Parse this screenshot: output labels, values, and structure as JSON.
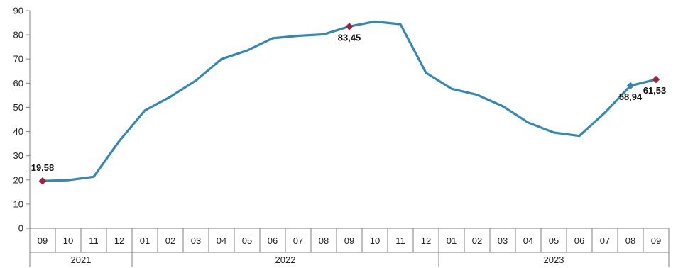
{
  "chart_data": {
    "type": "line",
    "title": "",
    "xlabel": "",
    "ylabel": "",
    "ylim": [
      0,
      90
    ],
    "yticks": [
      0,
      10,
      20,
      30,
      40,
      50,
      60,
      70,
      80,
      90
    ],
    "grid": false,
    "legend": "none",
    "categories": [
      "09",
      "10",
      "11",
      "12",
      "01",
      "02",
      "03",
      "04",
      "05",
      "06",
      "07",
      "08",
      "09",
      "10",
      "11",
      "12",
      "01",
      "02",
      "03",
      "04",
      "05",
      "06",
      "07",
      "08",
      "09"
    ],
    "year_groups": [
      {
        "label": "2021",
        "start": 0,
        "end": 3
      },
      {
        "label": "2022",
        "start": 4,
        "end": 15
      },
      {
        "label": "2023",
        "start": 16,
        "end": 24
      }
    ],
    "series": [
      {
        "values": [
          19.58,
          19.9,
          21.3,
          36.1,
          48.7,
          54.4,
          61.1,
          69.97,
          73.5,
          78.6,
          79.6,
          80.2,
          83.45,
          85.5,
          84.4,
          64.3,
          57.7,
          55.2,
          50.5,
          43.7,
          39.6,
          38.2,
          47.8,
          58.94,
          61.53
        ]
      }
    ],
    "labeled_points": [
      {
        "index": 0,
        "text": "19,58",
        "position": "above"
      },
      {
        "index": 12,
        "text": "83,45",
        "position": "below"
      },
      {
        "index": 23,
        "text": "58,94",
        "position": "below"
      },
      {
        "index": 24,
        "text": "61,53",
        "position": "below"
      }
    ],
    "colors": {
      "line": "#3388b5",
      "marker_red": "#a02040",
      "marker_blue": "#3a82b0",
      "axis": "#808080"
    },
    "marker_styles": {
      "0": "red",
      "12": "red",
      "23": "blue",
      "24": "red"
    }
  }
}
